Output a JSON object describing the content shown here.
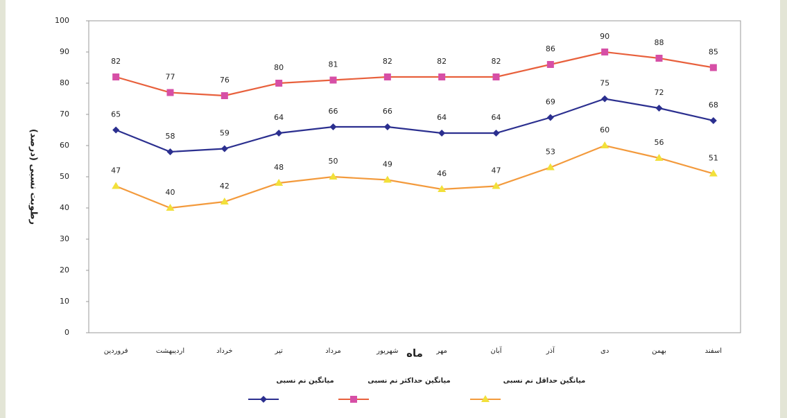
{
  "chart_data": {
    "type": "line",
    "ylabel": "رطوبت نسبی (درصد)",
    "xlabel": "ماه",
    "categories": [
      "فروردین",
      "اردیبهشت",
      "خرداد",
      "تیر",
      "مرداد",
      "شهریور",
      "مهر",
      "آبان",
      "آذر",
      "دی",
      "بهمن",
      "اسفند"
    ],
    "ylim": [
      0,
      100
    ],
    "yticks": [
      0,
      10,
      20,
      30,
      40,
      50,
      60,
      70,
      80,
      90,
      100
    ],
    "grid": false,
    "legend": "bottom",
    "series": [
      {
        "name": "میانگین حداکثر نم نسبی",
        "color": "#e8603c",
        "marker_color": "#d64fa6",
        "marker": "square",
        "values": [
          82,
          77,
          76,
          80,
          81,
          82,
          82,
          82,
          86,
          90,
          88,
          85
        ]
      },
      {
        "name": "میانگین نم نسبی",
        "color": "#2b2f8f",
        "marker_color": "#2b2f8f",
        "marker": "diamond",
        "values": [
          65,
          58,
          59,
          64,
          66,
          66,
          64,
          64,
          69,
          75,
          72,
          68
        ]
      },
      {
        "name": "میانگین حداقل نم نسبی",
        "color": "#f39a3c",
        "marker_color": "#f2e03a",
        "marker": "triangle",
        "values": [
          47,
          40,
          42,
          48,
          50,
          49,
          46,
          47,
          53,
          60,
          56,
          51
        ]
      }
    ]
  }
}
